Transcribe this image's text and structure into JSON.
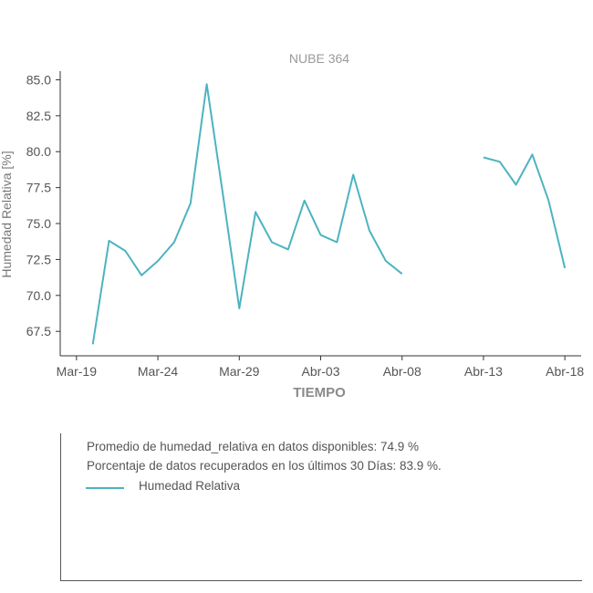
{
  "chart_data": {
    "type": "line",
    "title": "NUBE 364",
    "xlabel": "TIEMPO",
    "ylabel": "Humedad Relativa [%]",
    "x_tick_labels": [
      "Mar-19",
      "Mar-24",
      "Mar-29",
      "Abr-03",
      "Abr-08",
      "Abr-13",
      "Abr-18"
    ],
    "y_tick_labels": [
      "67.5",
      "70.0",
      "72.5",
      "75.0",
      "77.5",
      "80.0",
      "82.5",
      "85.0"
    ],
    "y_ticks": [
      67.5,
      70.0,
      72.5,
      75.0,
      77.5,
      80.0,
      82.5,
      85.0
    ],
    "ylim": [
      65.8,
      85.6
    ],
    "x_tick_positions": [
      0,
      5,
      10,
      15,
      20,
      25,
      30
    ],
    "xlim": [
      -1,
      31
    ],
    "x": [
      1,
      2,
      3,
      4,
      5,
      6,
      7,
      8,
      9,
      10,
      11,
      12,
      13,
      14,
      15,
      16,
      17,
      18,
      19,
      20,
      21,
      22,
      23,
      24,
      25,
      26,
      27,
      28,
      29,
      30
    ],
    "series": [
      {
        "name": "Humedad Relativa",
        "color": "#4db3c0",
        "values": [
          66.6,
          73.8,
          73.1,
          71.4,
          72.4,
          73.7,
          76.4,
          84.7,
          77.0,
          69.1,
          75.8,
          73.7,
          73.2,
          76.6,
          74.2,
          73.7,
          78.4,
          74.5,
          72.4,
          71.5,
          null,
          null,
          null,
          null,
          79.6,
          79.3,
          77.7,
          79.8,
          76.6,
          71.9
        ]
      }
    ],
    "grid": false
  },
  "notes": {
    "average": "Promedio de humedad_relativa en datos disponibles: 74.9 %",
    "recovered": "Porcentaje de datos recuperados en los últimos 30 Días: 83.9 %.",
    "legend_label": "Humedad Relativa"
  }
}
